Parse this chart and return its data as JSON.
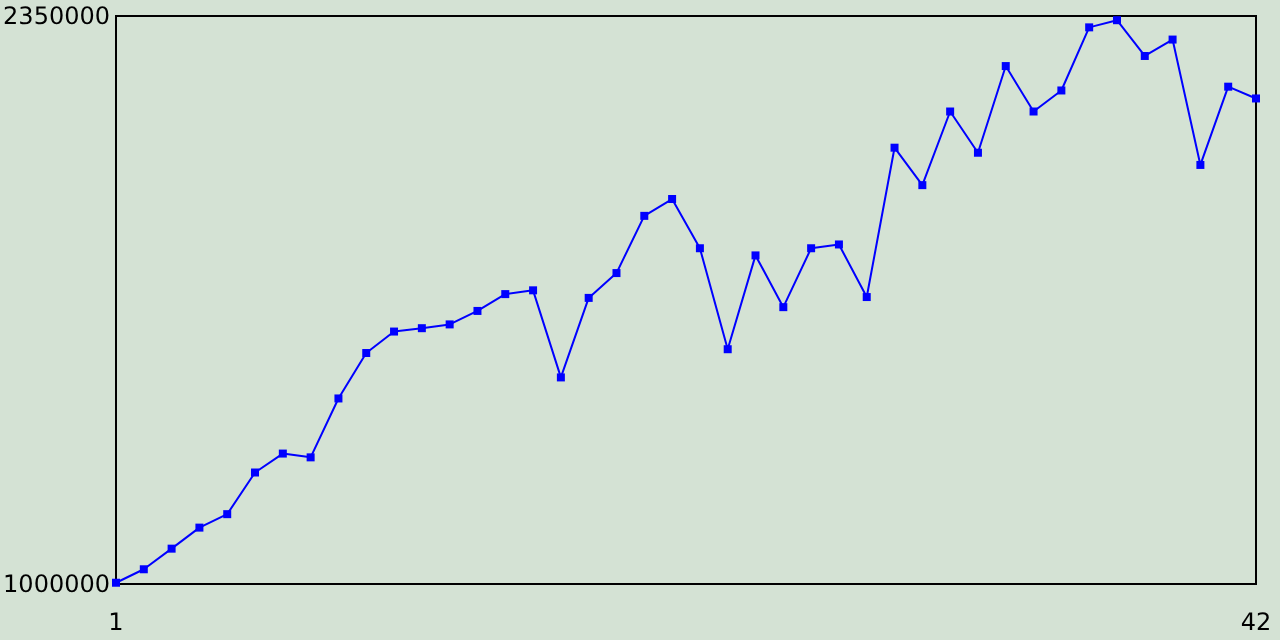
{
  "chart_data": {
    "type": "line",
    "x": [
      1,
      2,
      3,
      4,
      5,
      6,
      7,
      8,
      9,
      10,
      11,
      12,
      13,
      14,
      15,
      16,
      17,
      18,
      19,
      20,
      21,
      22,
      23,
      24,
      25,
      26,
      27,
      28,
      29,
      30,
      31,
      32,
      33,
      34,
      35,
      36,
      37,
      38,
      39,
      40,
      41,
      42
    ],
    "series": [
      {
        "color": "#0000ff",
        "values": [
          1003000,
          1035000,
          1084000,
          1134000,
          1166000,
          1265000,
          1310000,
          1301000,
          1441000,
          1549000,
          1600000,
          1608000,
          1617000,
          1649000,
          1689000,
          1698000,
          1491000,
          1680000,
          1739000,
          1875000,
          1915000,
          1798000,
          1558000,
          1781000,
          1658000,
          1798000,
          1807000,
          1682000,
          2037000,
          1948000,
          2123000,
          2025000,
          2231000,
          2123000,
          2173000,
          2323000,
          2340000,
          2255000,
          2294000,
          1996000,
          2182000,
          2154000
        ]
      }
    ],
    "xlim": [
      1,
      42
    ],
    "xticks": [
      1,
      42
    ],
    "ylim": [
      1000000,
      2350000
    ],
    "yticks": [
      1000000,
      2350000
    ],
    "grid": false,
    "marker": "square",
    "line_style": "solid"
  }
}
